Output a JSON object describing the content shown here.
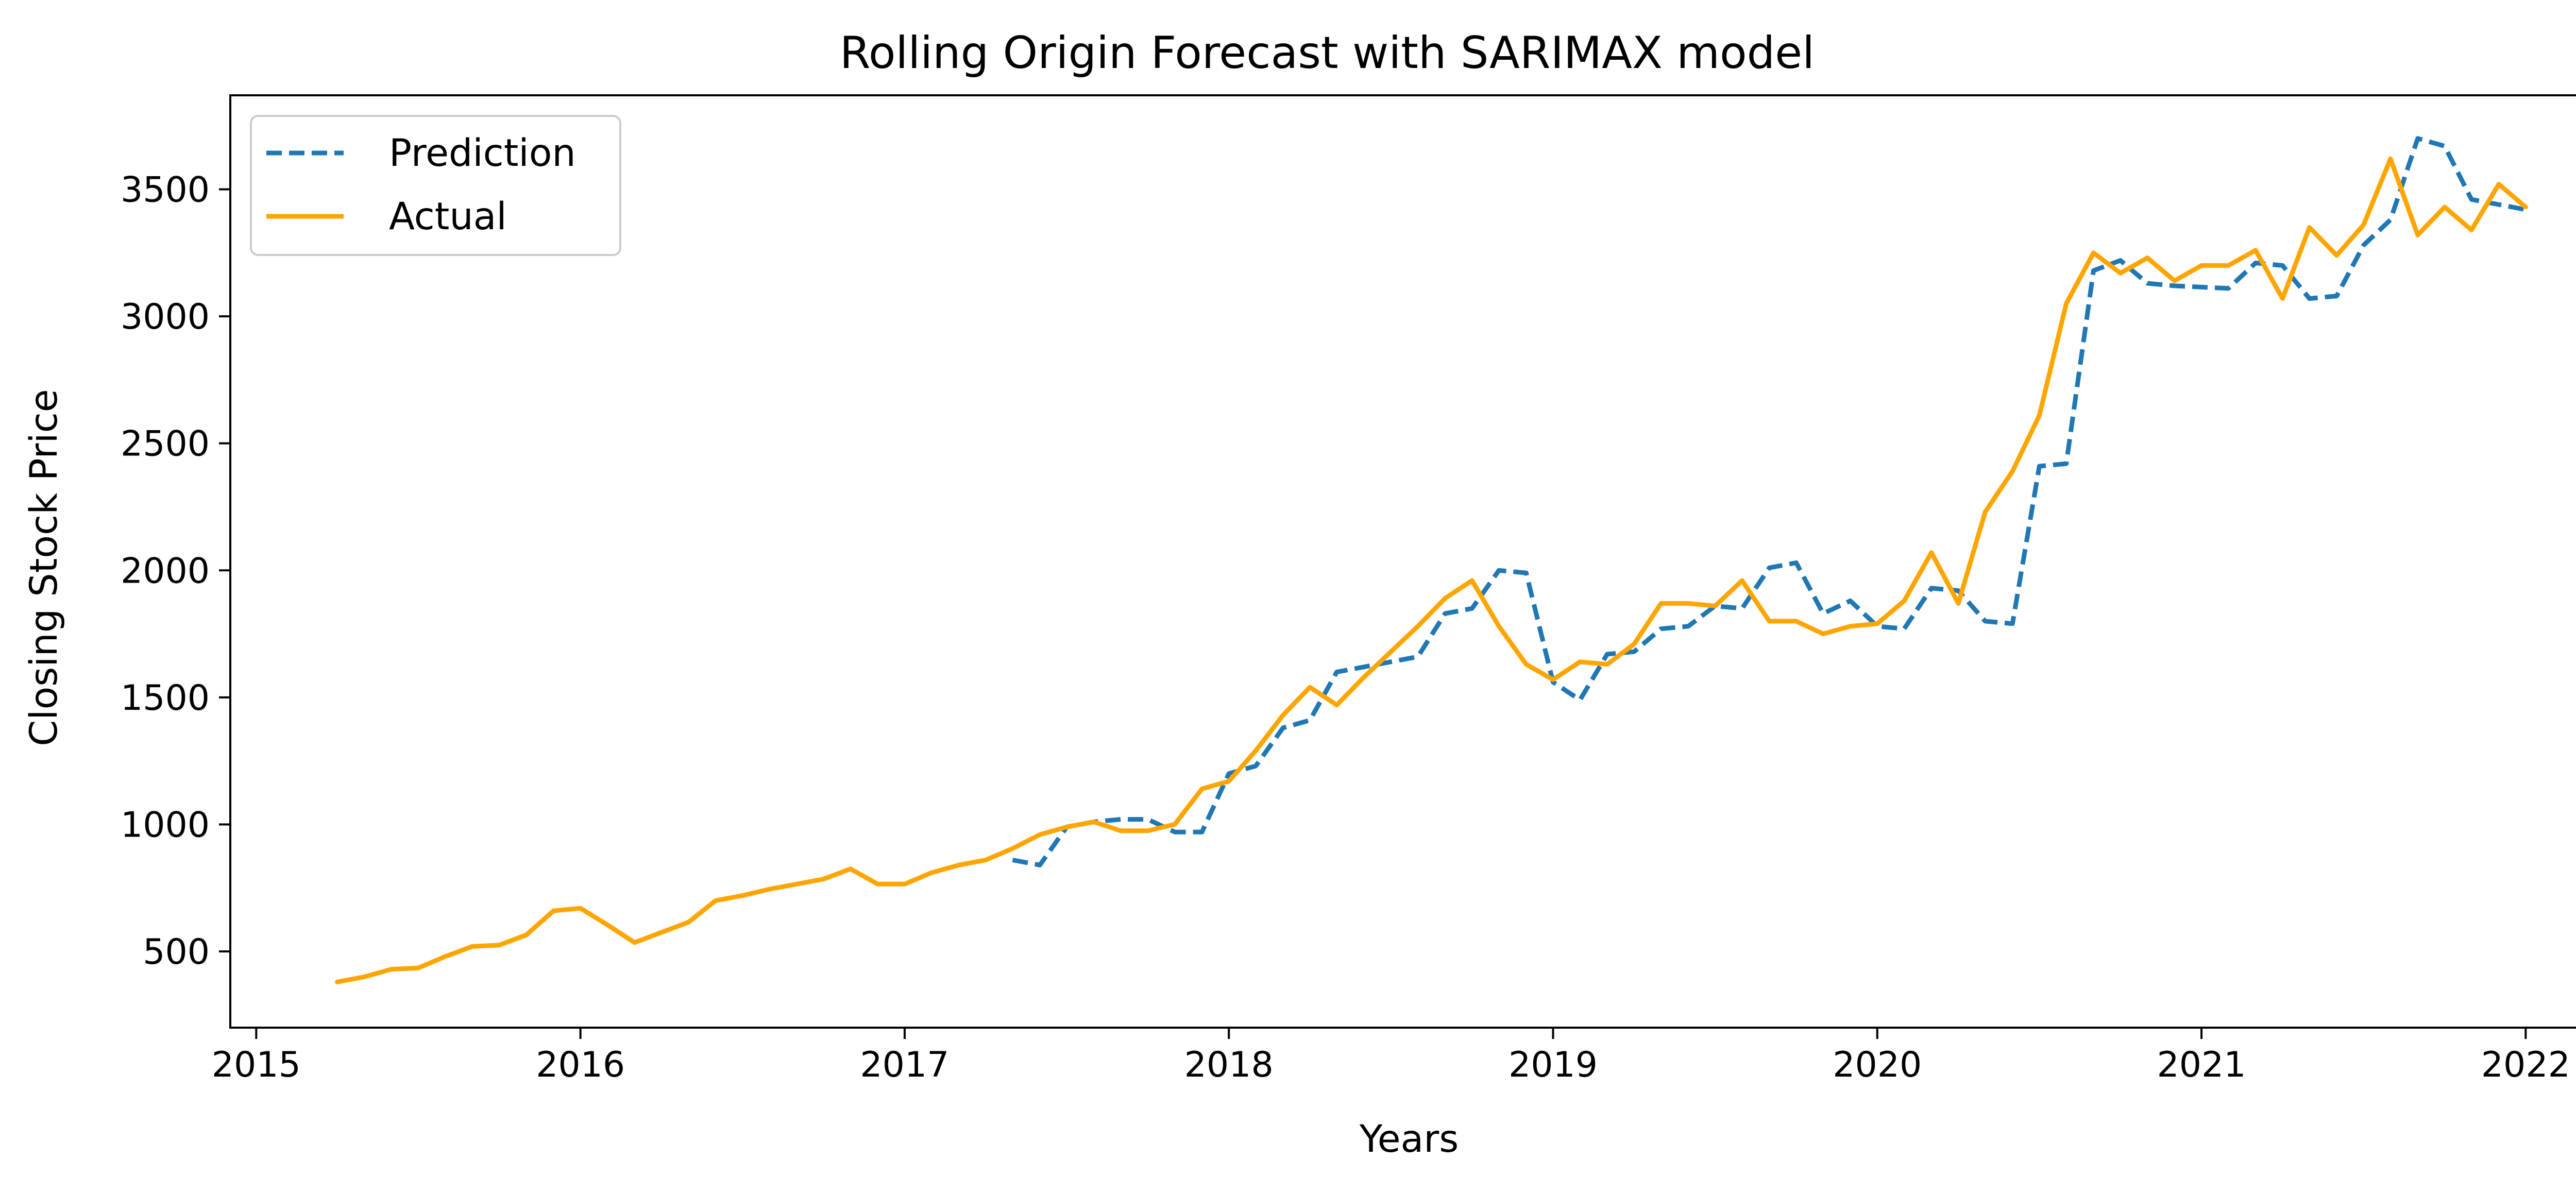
{
  "colors": {
    "prediction": "#1f77b4",
    "actual": "#ffa500",
    "axes": "#000000",
    "background": "#ffffff"
  },
  "chart_data": {
    "type": "line",
    "title": "Rolling Origin Forecast with SARIMAX model",
    "xlabel": "Years",
    "ylabel": "Closing Stock Price",
    "xlim": [
      2014.92,
      2022.33
    ],
    "ylim": [
      200,
      3870
    ],
    "x_ticks": [
      2015,
      2016,
      2017,
      2018,
      2019,
      2020,
      2021,
      2022
    ],
    "x_tick_labels": [
      "2015",
      "2016",
      "2017",
      "2018",
      "2019",
      "2020",
      "2021",
      "2022"
    ],
    "y_ticks": [
      500,
      1000,
      1500,
      2000,
      2500,
      3000,
      3500
    ],
    "y_tick_labels": [
      "500",
      "1000",
      "1500",
      "2000",
      "2500",
      "3000",
      "3500"
    ],
    "grid": false,
    "legend": {
      "position": "top-left",
      "entries": [
        "Prediction",
        "Actual"
      ]
    },
    "series": [
      {
        "name": "Prediction",
        "style": "dashed",
        "x": [
          2017.333,
          2017.417,
          2017.5,
          2017.583,
          2017.667,
          2017.75,
          2017.833,
          2017.917,
          2018.0,
          2018.083,
          2018.167,
          2018.25,
          2018.333,
          2018.417,
          2018.5,
          2018.583,
          2018.667,
          2018.75,
          2018.833,
          2018.917,
          2019.0,
          2019.083,
          2019.167,
          2019.25,
          2019.333,
          2019.417,
          2019.5,
          2019.583,
          2019.667,
          2019.75,
          2019.833,
          2019.917,
          2020.0,
          2020.083,
          2020.167,
          2020.25,
          2020.333,
          2020.417,
          2020.5,
          2020.583,
          2020.667,
          2020.75,
          2020.833,
          2020.917,
          2021.0,
          2021.083,
          2021.167,
          2021.25,
          2021.333,
          2021.417,
          2021.5,
          2021.583,
          2021.667,
          2021.75,
          2021.833,
          2021.917,
          2022.0
        ],
        "y": [
          860,
          840,
          990,
          1010,
          1020,
          1020,
          970,
          970,
          1200,
          1230,
          1380,
          1410,
          1600,
          1620,
          1640,
          1660,
          1830,
          1850,
          2000,
          1990,
          1560,
          1490,
          1670,
          1680,
          1770,
          1780,
          1860,
          1850,
          2010,
          2030,
          1830,
          1880,
          1780,
          1770,
          1930,
          1920,
          1800,
          1790,
          2410,
          2420,
          3180,
          3220,
          3130,
          3120,
          3115,
          3110,
          3210,
          3200,
          3070,
          3080,
          3280,
          3380,
          3700,
          3670,
          3460,
          3440,
          3420
        ]
      },
      {
        "name": "Actual",
        "style": "solid",
        "x": [
          2015.25,
          2015.333,
          2015.417,
          2015.5,
          2015.583,
          2015.667,
          2015.75,
          2015.833,
          2015.917,
          2016.0,
          2016.083,
          2016.167,
          2016.25,
          2016.333,
          2016.417,
          2016.5,
          2016.583,
          2016.667,
          2016.75,
          2016.833,
          2016.917,
          2017.0,
          2017.083,
          2017.167,
          2017.25,
          2017.333,
          2017.417,
          2017.5,
          2017.583,
          2017.667,
          2017.75,
          2017.833,
          2017.917,
          2018.0,
          2018.083,
          2018.167,
          2018.25,
          2018.333,
          2018.417,
          2018.5,
          2018.583,
          2018.667,
          2018.75,
          2018.833,
          2018.917,
          2019.0,
          2019.083,
          2019.167,
          2019.25,
          2019.333,
          2019.417,
          2019.5,
          2019.583,
          2019.667,
          2019.75,
          2019.833,
          2019.917,
          2020.0,
          2020.083,
          2020.167,
          2020.25,
          2020.333,
          2020.417,
          2020.5,
          2020.583,
          2020.667,
          2020.75,
          2020.833,
          2020.917,
          2021.0,
          2021.083,
          2021.167,
          2021.25,
          2021.333,
          2021.417,
          2021.5,
          2021.583,
          2021.667,
          2021.75,
          2021.833,
          2021.917,
          2022.0
        ],
        "y": [
          380,
          400,
          430,
          435,
          480,
          520,
          525,
          565,
          660,
          670,
          605,
          535,
          575,
          615,
          700,
          720,
          745,
          765,
          785,
          825,
          765,
          765,
          810,
          840,
          860,
          905,
          960,
          990,
          1010,
          975,
          975,
          1000,
          1140,
          1170,
          1290,
          1430,
          1540,
          1470,
          1580,
          1680,
          1780,
          1890,
          1960,
          1780,
          1630,
          1570,
          1640,
          1630,
          1710,
          1870,
          1870,
          1860,
          1960,
          1800,
          1800,
          1750,
          1780,
          1790,
          1880,
          2070,
          1870,
          2230,
          2390,
          2610,
          3050,
          3250,
          3170,
          3230,
          3140,
          3200,
          3200,
          3260,
          3070,
          3350,
          3240,
          3360,
          3620,
          3320,
          3430,
          3340,
          3520,
          3430
        ]
      }
    ]
  }
}
